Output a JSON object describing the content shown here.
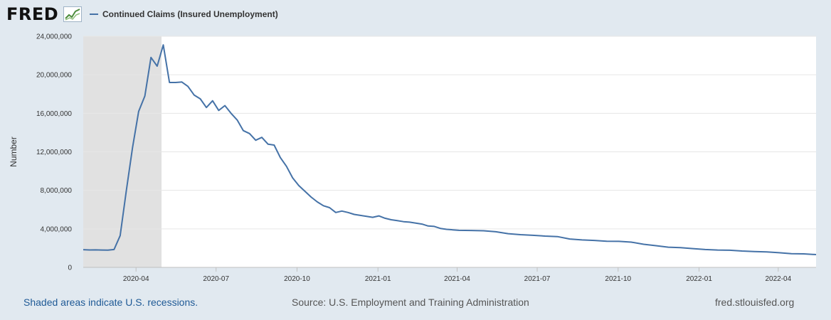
{
  "header": {
    "logo_text": "FRED",
    "logo_icon": "fred-line-chart-icon",
    "series_color": "#4572a7"
  },
  "chart_data": {
    "type": "line",
    "title": "",
    "xlabel": "",
    "ylabel": "Number",
    "ylim": [
      0,
      24000000
    ],
    "yticks": [
      0,
      4000000,
      8000000,
      12000000,
      16000000,
      20000000,
      24000000
    ],
    "ytick_labels": [
      "0",
      "4,000,000",
      "8,000,000",
      "12,000,000",
      "16,000,000",
      "20,000,000",
      "24,000,000"
    ],
    "xlim": [
      "2020-02-01",
      "2022-05-14"
    ],
    "xticks": [
      "2020-04-01",
      "2020-07-01",
      "2020-10-01",
      "2021-01-01",
      "2021-04-01",
      "2021-07-01",
      "2021-10-01",
      "2022-01-01",
      "2022-04-01"
    ],
    "xtick_labels": [
      "2020-04",
      "2020-07",
      "2020-10",
      "2021-01",
      "2021-04",
      "2021-07",
      "2021-10",
      "2022-01",
      "2022-04"
    ],
    "grid": true,
    "legend_position": "top-left",
    "recessions": [
      {
        "start": "2020-02-01",
        "end": "2020-04-30"
      }
    ],
    "series": [
      {
        "name": "Continued Claims (Insured Unemployment)",
        "color": "#4572a7",
        "x": [
          "2020-02-01",
          "2020-02-08",
          "2020-02-15",
          "2020-02-22",
          "2020-02-29",
          "2020-03-07",
          "2020-03-14",
          "2020-03-21",
          "2020-03-28",
          "2020-04-04",
          "2020-04-11",
          "2020-04-18",
          "2020-04-25",
          "2020-05-02",
          "2020-05-09",
          "2020-05-16",
          "2020-05-23",
          "2020-05-30",
          "2020-06-06",
          "2020-06-13",
          "2020-06-20",
          "2020-06-27",
          "2020-07-04",
          "2020-07-11",
          "2020-07-18",
          "2020-07-25",
          "2020-08-01",
          "2020-08-08",
          "2020-08-15",
          "2020-08-22",
          "2020-08-29",
          "2020-09-05",
          "2020-09-12",
          "2020-09-19",
          "2020-09-26",
          "2020-10-03",
          "2020-10-10",
          "2020-10-17",
          "2020-10-24",
          "2020-10-31",
          "2020-11-07",
          "2020-11-14",
          "2020-11-21",
          "2020-11-28",
          "2020-12-05",
          "2020-12-12",
          "2020-12-19",
          "2020-12-26",
          "2021-01-02",
          "2021-01-09",
          "2021-01-16",
          "2021-01-23",
          "2021-01-30",
          "2021-02-06",
          "2021-02-13",
          "2021-02-20",
          "2021-02-27",
          "2021-03-06",
          "2021-03-13",
          "2021-03-20",
          "2021-03-27",
          "2021-04-03",
          "2021-04-17",
          "2021-05-01",
          "2021-05-15",
          "2021-05-29",
          "2021-06-12",
          "2021-06-26",
          "2021-07-10",
          "2021-07-24",
          "2021-08-07",
          "2021-08-21",
          "2021-09-04",
          "2021-09-18",
          "2021-10-02",
          "2021-10-16",
          "2021-10-30",
          "2021-11-13",
          "2021-11-27",
          "2021-12-11",
          "2021-12-25",
          "2022-01-08",
          "2022-01-22",
          "2022-02-05",
          "2022-02-19",
          "2022-03-05",
          "2022-03-19",
          "2022-04-02",
          "2022-04-16",
          "2022-04-30",
          "2022-05-14"
        ],
        "y": [
          1840000,
          1810000,
          1820000,
          1800000,
          1790000,
          1850000,
          3300000,
          8000000,
          12400000,
          16200000,
          17800000,
          21800000,
          20900000,
          23100000,
          19200000,
          19200000,
          19250000,
          18800000,
          17900000,
          17500000,
          16600000,
          17300000,
          16300000,
          16800000,
          16000000,
          15300000,
          14200000,
          13900000,
          13200000,
          13500000,
          12800000,
          12700000,
          11400000,
          10500000,
          9300000,
          8500000,
          7900000,
          7300000,
          6800000,
          6400000,
          6200000,
          5700000,
          5850000,
          5700000,
          5500000,
          5400000,
          5300000,
          5200000,
          5350000,
          5100000,
          4950000,
          4850000,
          4750000,
          4700000,
          4600000,
          4500000,
          4300000,
          4250000,
          4050000,
          3950000,
          3900000,
          3850000,
          3830000,
          3800000,
          3700000,
          3500000,
          3400000,
          3330000,
          3250000,
          3200000,
          2950000,
          2850000,
          2800000,
          2720000,
          2700000,
          2620000,
          2400000,
          2250000,
          2100000,
          2050000,
          1950000,
          1850000,
          1800000,
          1780000,
          1700000,
          1650000,
          1600000,
          1520000,
          1420000,
          1400000,
          1330000
        ]
      }
    ]
  },
  "footer": {
    "recession_note": "Shaded areas indicate U.S. recessions.",
    "source": "Source: U.S. Employment and Training Administration",
    "url": "fred.stlouisfed.org"
  }
}
